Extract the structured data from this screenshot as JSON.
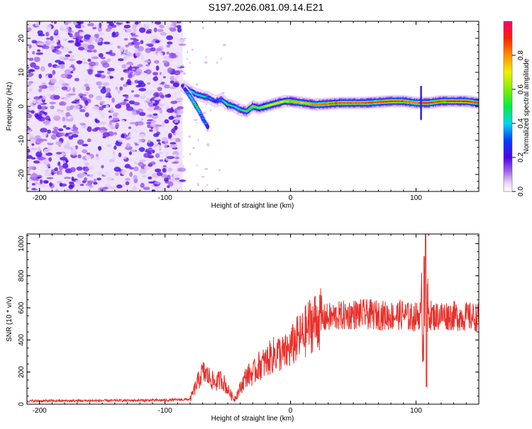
{
  "page_title": "S197.2026.081.09.14.E21",
  "chart_data": [
    {
      "type": "heatmap",
      "xlabel": "Height of straight line (km)",
      "ylabel": "Frequency (Hz)",
      "xlim": [
        -210,
        150
      ],
      "ylim": [
        -25,
        25
      ],
      "xticks": [
        -200,
        -100,
        0,
        100
      ],
      "yticks": [
        -20,
        -10,
        0,
        10,
        20
      ],
      "noise_region_x": [
        -210,
        -86
      ],
      "ridge": {
        "x": [
          -86,
          -80,
          -75,
          -70,
          -65,
          -60,
          -55,
          -50,
          -45,
          -40,
          -35,
          -30,
          -25,
          -20,
          -15,
          -10,
          -5,
          0,
          10,
          20,
          40,
          60,
          80,
          90,
          100,
          104,
          110,
          120,
          130,
          140,
          150
        ],
        "y": [
          6,
          4.5,
          3.5,
          3,
          2.5,
          1.5,
          2,
          0.5,
          0,
          -1,
          -1.5,
          0,
          -0.5,
          0,
          0.5,
          1,
          1.5,
          1.5,
          1,
          0.5,
          1,
          1,
          1.5,
          1.5,
          1,
          1,
          1,
          1.5,
          1.5,
          1.5,
          1
        ],
        "amp": [
          0.3,
          0.45,
          0.4,
          0.45,
          0.35,
          0.3,
          0.35,
          0.5,
          0.4,
          0.45,
          0.5,
          0.6,
          0.55,
          0.65,
          0.7,
          0.75,
          0.7,
          0.8,
          0.75,
          0.8,
          0.85,
          0.85,
          0.9,
          0.85,
          0.8,
          0.9,
          0.9,
          0.85,
          0.9,
          0.9,
          0.85
        ]
      },
      "branch": {
        "x": [
          -84,
          -80,
          -75,
          -72,
          -70,
          -66
        ],
        "y": [
          5,
          3,
          0,
          -2,
          -3.5,
          -6
        ],
        "amp": [
          0.3,
          0.4,
          0.45,
          0.4,
          0.35,
          0.3
        ]
      },
      "colorbar": {
        "label": "Normalized spectral amplitude",
        "ticks": [
          0.0,
          0.2,
          0.4,
          0.6,
          0.8
        ],
        "range": [
          0,
          1
        ]
      }
    },
    {
      "type": "line",
      "xlabel": "Height of straight line (km)",
      "ylabel": "SNR (10 * v/v)",
      "xlim": [
        -210,
        150
      ],
      "ylim": [
        0,
        1060
      ],
      "xticks": [
        -200,
        -100,
        0,
        100
      ],
      "yticks": [
        0,
        200,
        400,
        600,
        800,
        1000
      ],
      "color": "#e8302a",
      "series": [
        {
          "name": "SNR",
          "x": [
            -210,
            -150,
            -100,
            -80,
            -75,
            -70,
            -65,
            -60,
            -55,
            -50,
            -45,
            -40,
            -35,
            -30,
            -25,
            -20,
            -15,
            -10,
            -5,
            0,
            5,
            10,
            15,
            20,
            25,
            30,
            40,
            50,
            60,
            70,
            80,
            90,
            95,
            100,
            105,
            106,
            107,
            108,
            110,
            115,
            120,
            130,
            140,
            150
          ],
          "y": [
            20,
            22,
            25,
            30,
            120,
            200,
            170,
            130,
            160,
            90,
            30,
            100,
            180,
            190,
            240,
            260,
            300,
            320,
            310,
            350,
            400,
            430,
            490,
            520,
            530,
            540,
            550,
            560,
            560,
            555,
            550,
            560,
            540,
            545,
            570,
            300,
            950,
            500,
            560,
            545,
            555,
            550,
            545,
            540
          ]
        }
      ]
    }
  ]
}
